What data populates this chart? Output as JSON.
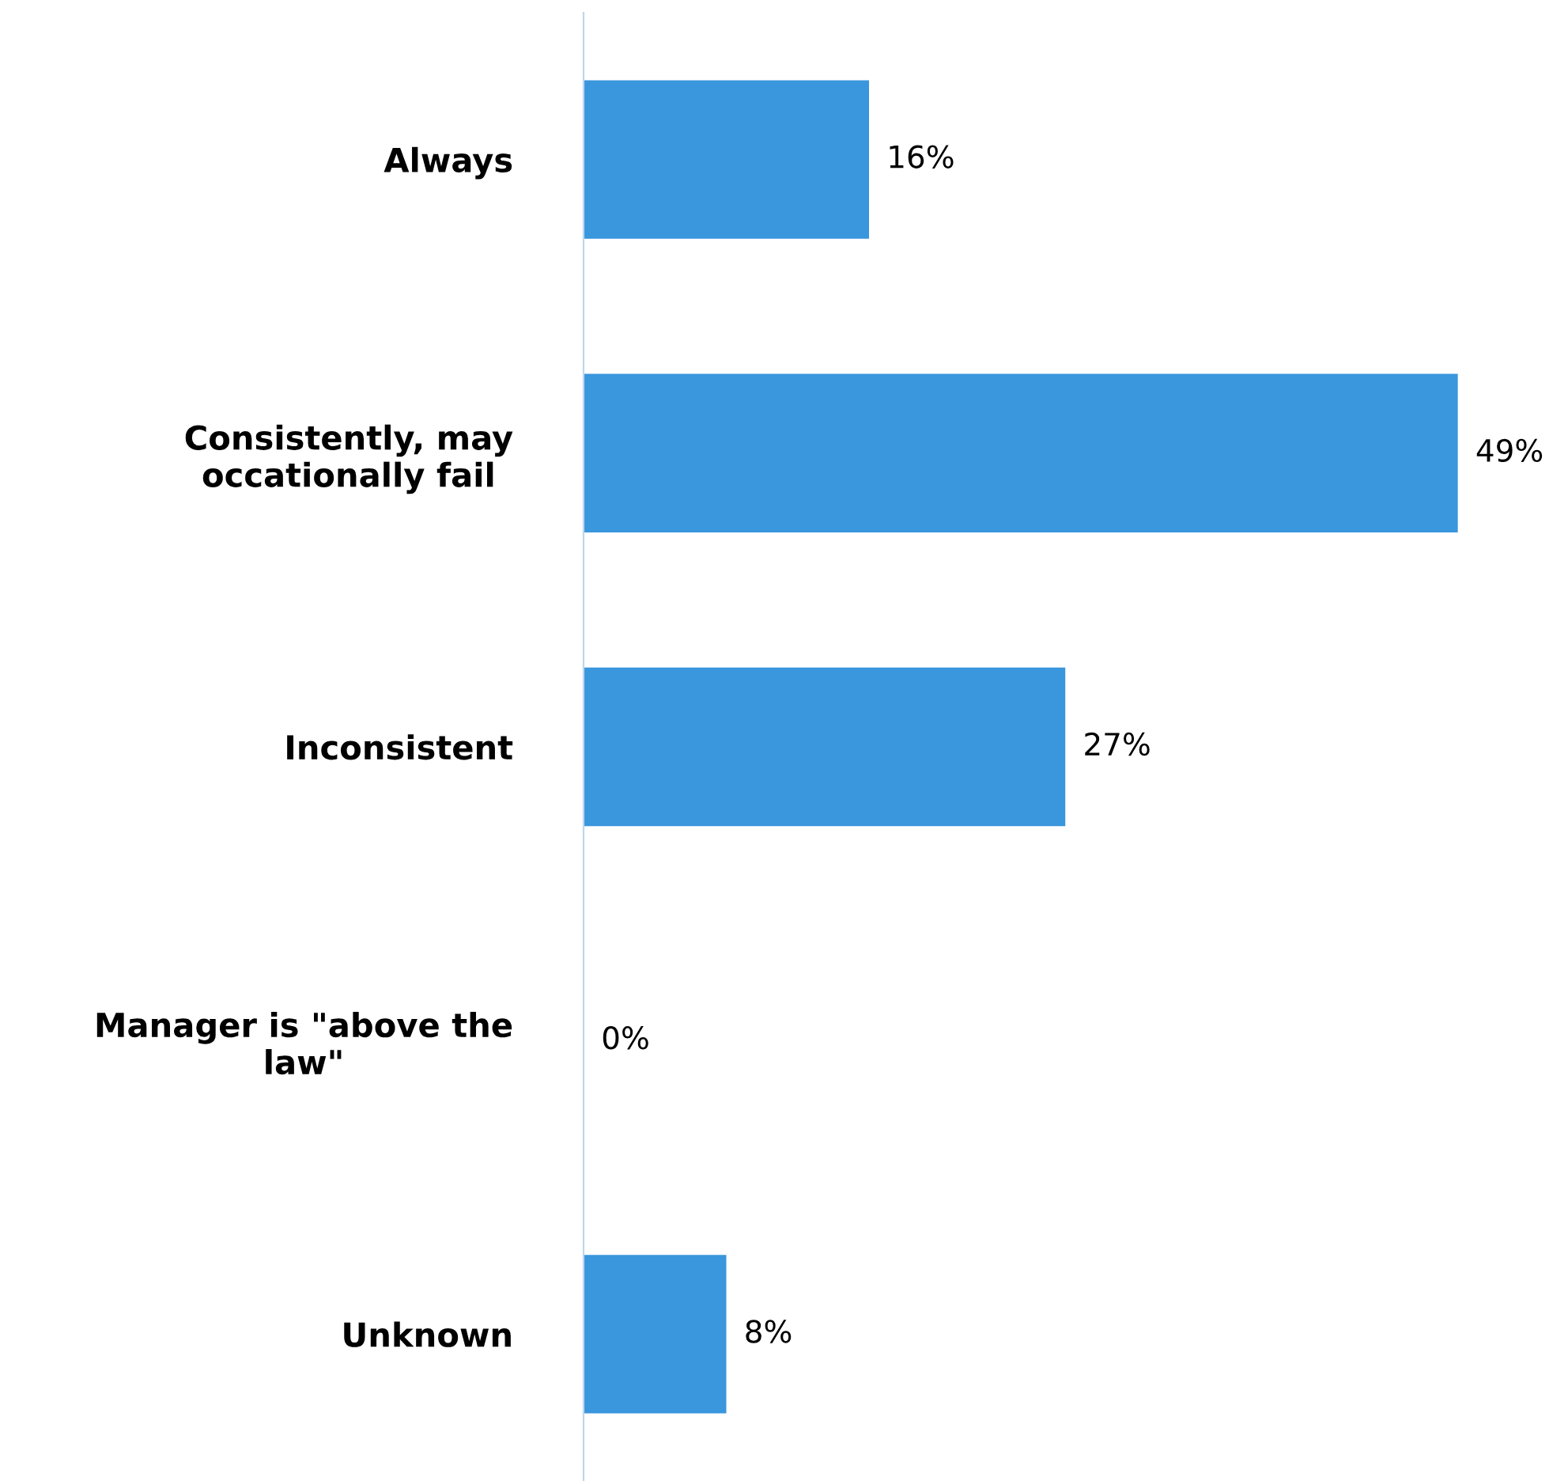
{
  "chart_data": {
    "type": "bar",
    "orientation": "horizontal",
    "categories": [
      "Always",
      "Consistently, may\noccationally fail",
      "Inconsistent",
      "Manager is \"above the\nlaw\"",
      "Unknown"
    ],
    "values": [
      16,
      49,
      27,
      0,
      8
    ],
    "value_labels": [
      "16%",
      "49%",
      "27%",
      "0%",
      "8%"
    ],
    "color": "#3a96dd",
    "tick_labels": "y",
    "grid": false,
    "legend": false
  }
}
